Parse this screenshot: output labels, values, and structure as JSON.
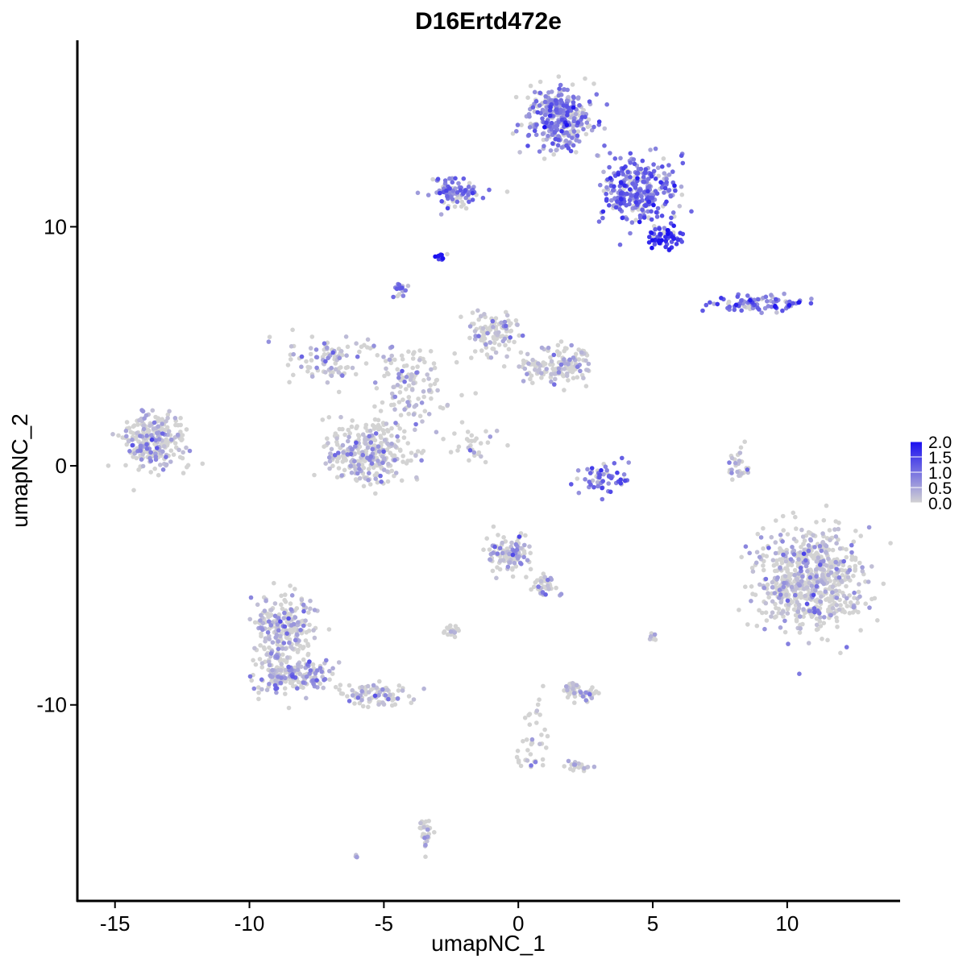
{
  "chart_data": {
    "type": "scatter",
    "title": "D16Ertd472e",
    "xlabel": "umapNC_1",
    "ylabel": "umapNC_2",
    "xlim": [
      -16.4,
      14.2
    ],
    "ylim": [
      -18.2,
      17.8
    ],
    "x_ticks": [
      -15,
      -10,
      -5,
      0,
      5,
      10
    ],
    "x_tick_labels": [
      "-15",
      "-10",
      "-5",
      "0",
      "5",
      "10"
    ],
    "y_ticks": [
      -10,
      0,
      10
    ],
    "y_tick_labels": [
      "-10",
      "0",
      "10"
    ],
    "grid": false,
    "color_scale": {
      "low": "#d3d3d3",
      "high": "#1a0ff0",
      "min": 0.0,
      "max": 2.0
    },
    "legend": {
      "position": "right",
      "values": [
        0.0,
        0.5,
        1.0,
        1.5,
        2.0
      ],
      "labels": [
        "0.0",
        "0.5",
        "1.0",
        "1.5",
        "2.0"
      ]
    },
    "clusters": [
      {
        "name": "",
        "center": [
          1.5,
          14.5
        ],
        "spread": [
          1.0,
          1.1
        ],
        "n": 340,
        "mean_expr": 0.8
      },
      {
        "name": "",
        "center": [
          4.5,
          11.5
        ],
        "spread": [
          1.2,
          1.2
        ],
        "n": 300,
        "mean_expr": 1.0
      },
      {
        "name": "",
        "center": [
          5.5,
          9.5
        ],
        "spread": [
          0.5,
          0.4
        ],
        "n": 60,
        "mean_expr": 1.6
      },
      {
        "name": "",
        "center": [
          -2.3,
          11.5
        ],
        "spread": [
          0.8,
          0.5
        ],
        "n": 90,
        "mean_expr": 0.9
      },
      {
        "name": "",
        "center": [
          -2.9,
          8.7
        ],
        "spread": [
          0.15,
          0.15
        ],
        "n": 12,
        "mean_expr": 1.8
      },
      {
        "name": "",
        "center": [
          -4.4,
          7.4
        ],
        "spread": [
          0.2,
          0.3
        ],
        "n": 15,
        "mean_expr": 0.8
      },
      {
        "name": "",
        "center": [
          9.0,
          6.8
        ],
        "spread": [
          1.4,
          0.3
        ],
        "n": 90,
        "mean_expr": 1.0
      },
      {
        "name": "",
        "center": [
          -13.5,
          1.0
        ],
        "spread": [
          1.0,
          0.9
        ],
        "n": 250,
        "mean_expr": 0.4
      },
      {
        "name": "",
        "center": [
          -5.5,
          0.5
        ],
        "spread": [
          1.3,
          1.0
        ],
        "n": 320,
        "mean_expr": 0.3
      },
      {
        "name": "",
        "center": [
          -7.0,
          4.5
        ],
        "spread": [
          1.3,
          1.0
        ],
        "n": 100,
        "mean_expr": 0.4
      },
      {
        "name": "",
        "center": [
          -4.0,
          3.5
        ],
        "spread": [
          1.2,
          1.4
        ],
        "n": 120,
        "mean_expr": 0.3
      },
      {
        "name": "",
        "center": [
          -1.0,
          5.5
        ],
        "spread": [
          0.8,
          0.8
        ],
        "n": 100,
        "mean_expr": 0.3
      },
      {
        "name": "",
        "center": [
          1.5,
          4.2
        ],
        "spread": [
          1.2,
          0.6
        ],
        "n": 150,
        "mean_expr": 0.3
      },
      {
        "name": "",
        "center": [
          -1.8,
          1.0
        ],
        "spread": [
          0.8,
          0.6
        ],
        "n": 30,
        "mean_expr": 0.2
      },
      {
        "name": "",
        "center": [
          3.2,
          -0.5
        ],
        "spread": [
          0.7,
          0.5
        ],
        "n": 60,
        "mean_expr": 0.9
      },
      {
        "name": "",
        "center": [
          8.2,
          0.0
        ],
        "spread": [
          0.3,
          0.7
        ],
        "n": 30,
        "mean_expr": 0.4
      },
      {
        "name": "",
        "center": [
          10.8,
          -4.8
        ],
        "spread": [
          1.6,
          1.7
        ],
        "n": 700,
        "mean_expr": 0.3
      },
      {
        "name": "",
        "center": [
          -0.4,
          -3.7
        ],
        "spread": [
          0.7,
          0.6
        ],
        "n": 110,
        "mean_expr": 0.5
      },
      {
        "name": "",
        "center": [
          1.0,
          -5.0
        ],
        "spread": [
          0.5,
          0.4
        ],
        "n": 40,
        "mean_expr": 0.4
      },
      {
        "name": "",
        "center": [
          -8.7,
          -6.8
        ],
        "spread": [
          0.9,
          1.2
        ],
        "n": 250,
        "mean_expr": 0.4
      },
      {
        "name": "",
        "center": [
          -8.3,
          -8.8
        ],
        "spread": [
          1.3,
          0.6
        ],
        "n": 200,
        "mean_expr": 0.4
      },
      {
        "name": "",
        "center": [
          -5.3,
          -9.6
        ],
        "spread": [
          1.0,
          0.4
        ],
        "n": 90,
        "mean_expr": 0.3
      },
      {
        "name": "",
        "center": [
          -2.5,
          -6.9
        ],
        "spread": [
          0.3,
          0.2
        ],
        "n": 20,
        "mean_expr": 0.4
      },
      {
        "name": "",
        "center": [
          2.0,
          -9.4
        ],
        "spread": [
          0.3,
          0.3
        ],
        "n": 35,
        "mean_expr": 0.3
      },
      {
        "name": "",
        "center": [
          2.7,
          -9.6
        ],
        "spread": [
          0.3,
          0.3
        ],
        "n": 20,
        "mean_expr": 0.3
      },
      {
        "name": "",
        "center": [
          0.5,
          -11.5
        ],
        "spread": [
          0.6,
          1.3
        ],
        "n": 40,
        "mean_expr": 0.1
      },
      {
        "name": "",
        "center": [
          2.2,
          -12.5
        ],
        "spread": [
          0.4,
          0.2
        ],
        "n": 20,
        "mean_expr": 0.3
      },
      {
        "name": "",
        "center": [
          -3.5,
          -15.5
        ],
        "spread": [
          0.2,
          0.6
        ],
        "n": 30,
        "mean_expr": 0.3
      },
      {
        "name": "",
        "center": [
          5.0,
          -7.2
        ],
        "spread": [
          0.1,
          0.2
        ],
        "n": 10,
        "mean_expr": 0.1
      },
      {
        "name": "",
        "center": [
          -6.0,
          -16.3
        ],
        "spread": [
          0.1,
          0.1
        ],
        "n": 4,
        "mean_expr": 0.4
      }
    ]
  }
}
